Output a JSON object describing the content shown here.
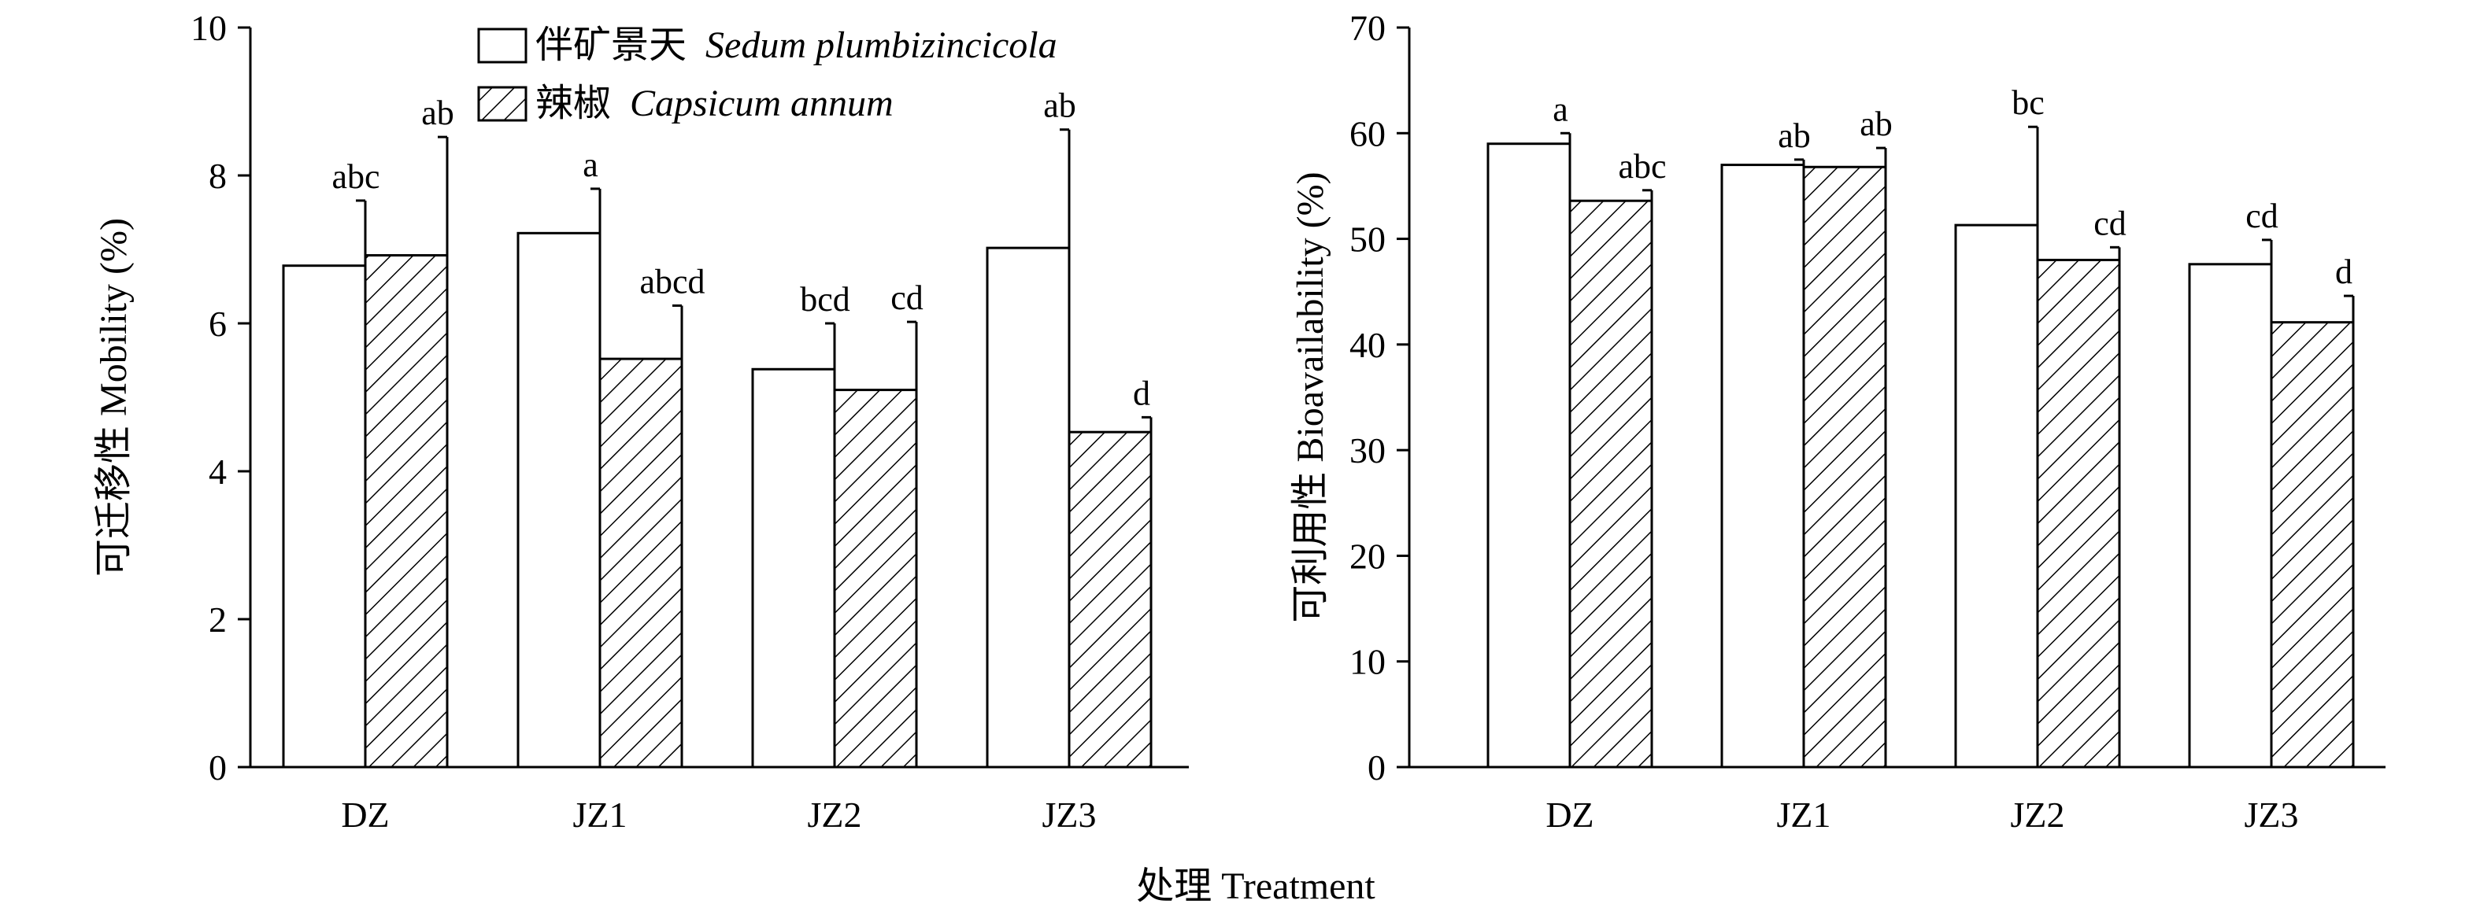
{
  "legend": {
    "series1_cn": "伴矿景天",
    "series1_latin": "Sedum plumbizincicola",
    "series2_cn": "辣椒",
    "series2_latin": "Capsicum annum"
  },
  "xlabel": "处理 Treatment",
  "colors": {
    "series1_fill": "#ffffff",
    "series2_hatch": "#000000",
    "stroke": "#000000"
  },
  "chart_data": [
    {
      "type": "bar",
      "categories": [
        "DZ",
        "JZ1",
        "JZ2",
        "JZ3"
      ],
      "ylabel": "可迁移性 Mobility (%)",
      "ylim": [
        0,
        10
      ],
      "yticks": [
        0,
        2,
        4,
        6,
        8,
        10
      ],
      "legend_placement": "top-right",
      "series": [
        {
          "name": "伴矿景天 Sedum plumbizincicola",
          "pattern": "solid-white",
          "values": [
            6.78,
            7.22,
            5.38,
            7.02
          ],
          "error": [
            0.88,
            0.6,
            0.62,
            1.6
          ],
          "labels": [
            "abc",
            "a",
            "bcd",
            "ab"
          ]
        },
        {
          "name": "辣椒 Capsicum annum",
          "pattern": "diagonal-hatch",
          "values": [
            6.92,
            5.52,
            5.1,
            4.53
          ],
          "error": [
            1.6,
            0.72,
            0.92,
            0.2
          ],
          "labels": [
            "ab",
            "abcd",
            "cd",
            "d"
          ]
        }
      ]
    },
    {
      "type": "bar",
      "categories": [
        "DZ",
        "JZ1",
        "JZ2",
        "JZ3"
      ],
      "ylabel": "可利用性 Bioavailability (%)",
      "ylim": [
        0,
        70
      ],
      "yticks": [
        0,
        10,
        20,
        30,
        40,
        50,
        60,
        70
      ],
      "series": [
        {
          "name": "伴矿景天 Sedum plumbizincicola",
          "pattern": "solid-white",
          "values": [
            59.0,
            57.0,
            51.3,
            47.6
          ],
          "error": [
            1.0,
            0.5,
            9.3,
            2.3
          ],
          "labels": [
            "a",
            "ab",
            "bc",
            "cd"
          ]
        },
        {
          "name": "辣椒 Capsicum annum",
          "pattern": "diagonal-hatch",
          "values": [
            53.6,
            56.8,
            48.0,
            42.1
          ],
          "error": [
            1.0,
            1.8,
            1.2,
            2.5
          ],
          "labels": [
            "abc",
            "ab",
            "cd",
            "d"
          ]
        }
      ]
    }
  ]
}
